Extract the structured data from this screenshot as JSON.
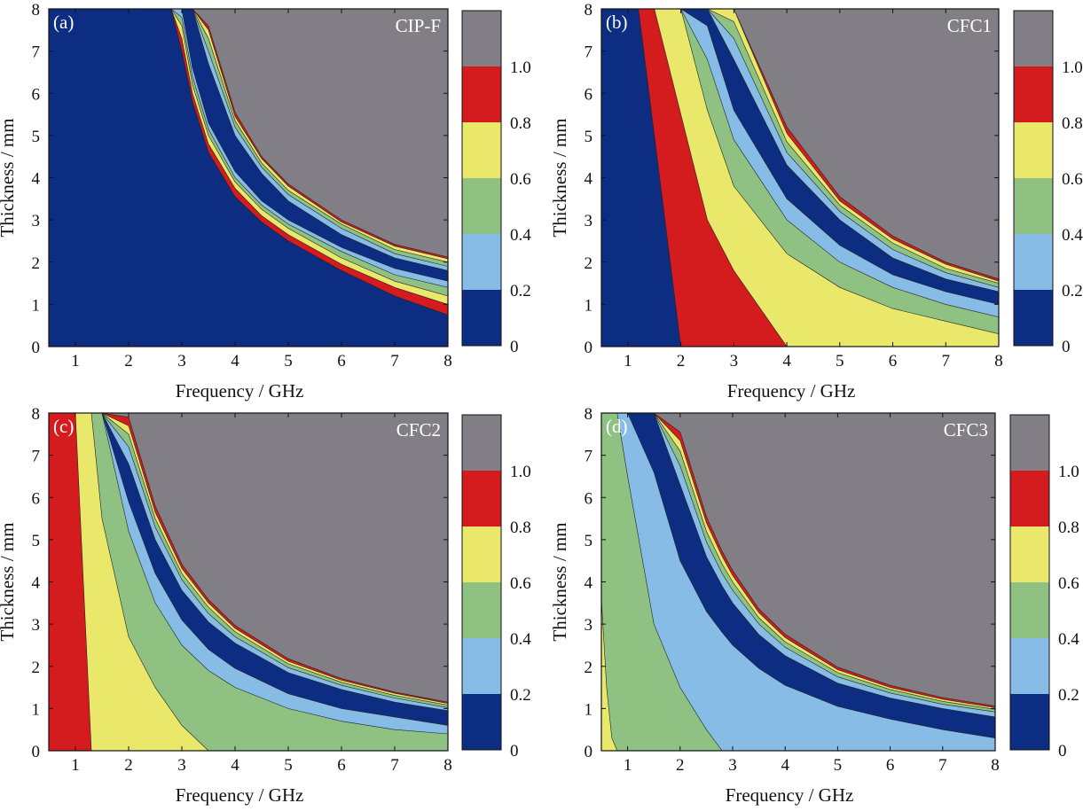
{
  "colors": {
    "band_0_0.2": "#0d2d82",
    "band_0.2_0.4": "#86bce6",
    "band_0.4_0.6": "#8fc183",
    "band_0.6_0.8": "#e9e86b",
    "band_0.8_1.0": "#d41b1d",
    "band_above_1.0": "#817f85"
  },
  "chart_data": [
    {
      "type": "heatmap",
      "panel_label": "(a)",
      "sample": "CIP-F",
      "xlabel": "Frequency / GHz",
      "ylabel": "Thickness / mm",
      "xlim": [
        0.5,
        8
      ],
      "ylim": [
        0,
        8
      ],
      "xticks": [
        "1",
        "2",
        "3",
        "4",
        "5",
        "6",
        "7",
        "8"
      ],
      "yticks": [
        "0",
        "1",
        "2",
        "3",
        "4",
        "5",
        "6",
        "7",
        "8"
      ],
      "colorbar_ticks": [
        "0",
        "0.2",
        "0.4",
        "0.6",
        "0.8",
        "1.0"
      ],
      "contour_levels": [
        0.2,
        0.4,
        0.6,
        0.8,
        1.0
      ],
      "band_edges_thickness_mm": {
        "frequency_GHz": [
          2.8,
          3.0,
          3.2,
          3.5,
          4.0,
          4.5,
          5.0,
          6.0,
          7.0,
          8.0
        ],
        "lower_1.0": [
          8.0,
          7.0,
          5.8,
          4.6,
          3.55,
          2.95,
          2.5,
          1.8,
          1.2,
          0.75
        ],
        "lower_0.8": [
          8.0,
          7.3,
          6.0,
          4.8,
          3.75,
          3.1,
          2.65,
          1.95,
          1.4,
          1.0
        ],
        "lower_0.6": [
          8.0,
          7.6,
          6.2,
          5.0,
          3.9,
          3.25,
          2.8,
          2.1,
          1.55,
          1.2
        ],
        "lower_0.4": [
          8.0,
          7.8,
          6.4,
          5.15,
          4.0,
          3.35,
          2.9,
          2.25,
          1.7,
          1.4
        ],
        "lower_0.2": [
          8.0,
          8.0,
          6.6,
          5.3,
          4.15,
          3.45,
          3.0,
          2.35,
          1.85,
          1.55
        ],
        "upper_0.2": [
          8.0,
          8.0,
          8.0,
          6.7,
          5.0,
          4.1,
          3.45,
          2.65,
          2.1,
          1.8
        ],
        "upper_0.4": [
          8.0,
          8.0,
          8.0,
          7.0,
          5.2,
          4.25,
          3.6,
          2.8,
          2.2,
          1.9
        ],
        "upper_0.6": [
          8.0,
          8.0,
          8.0,
          7.3,
          5.35,
          4.35,
          3.7,
          2.9,
          2.3,
          2.0
        ],
        "upper_0.8": [
          8.0,
          8.0,
          8.0,
          7.5,
          5.45,
          4.45,
          3.8,
          2.95,
          2.38,
          2.08
        ],
        "upper_1.0": [
          8.0,
          8.0,
          8.0,
          7.6,
          5.55,
          4.5,
          3.85,
          3.0,
          2.42,
          2.12
        ]
      }
    },
    {
      "type": "heatmap",
      "panel_label": "(b)",
      "sample": "CFC1",
      "xlabel": "Frequency / GHz",
      "ylabel": "Thickness / mm",
      "xlim": [
        0.5,
        8
      ],
      "ylim": [
        0,
        8
      ],
      "xticks": [
        "1",
        "2",
        "3",
        "4",
        "5",
        "6",
        "7",
        "8"
      ],
      "yticks": [
        "0",
        "1",
        "2",
        "3",
        "4",
        "5",
        "6",
        "7",
        "8"
      ],
      "colorbar_ticks": [
        "0",
        "0.2",
        "0.4",
        "0.6",
        "0.8",
        "1.0"
      ],
      "contour_levels": [
        0.2,
        0.4,
        0.6,
        0.8,
        1.0
      ],
      "band_edges_thickness_mm": {
        "frequency_GHz": [
          1.0,
          1.2,
          1.5,
          2.0,
          2.5,
          3.0,
          4.0,
          5.0,
          6.0,
          7.0,
          8.0
        ],
        "lower_1.0": [
          8.0,
          8.0,
          5.0,
          0.0,
          0.0,
          0.0,
          0.0,
          0.0,
          0.0,
          0.0,
          0.0
        ],
        "lower_0.8": [
          8.0,
          8.0,
          8.0,
          5.5,
          3.0,
          1.8,
          0.0,
          0.0,
          0.0,
          0.0,
          0.0
        ],
        "lower_0.6": [
          8.0,
          8.0,
          8.0,
          8.0,
          5.6,
          3.8,
          2.2,
          1.4,
          0.9,
          0.6,
          0.3
        ],
        "lower_0.4": [
          8.0,
          8.0,
          8.0,
          8.0,
          6.8,
          4.9,
          3.0,
          2.0,
          1.4,
          1.0,
          0.7
        ],
        "lower_0.2": [
          8.0,
          8.0,
          8.0,
          8.0,
          7.6,
          5.6,
          3.5,
          2.4,
          1.7,
          1.3,
          1.0
        ],
        "upper_0.2": [
          8.0,
          8.0,
          8.0,
          8.0,
          8.0,
          6.8,
          4.3,
          3.0,
          2.1,
          1.6,
          1.3
        ],
        "upper_0.4": [
          8.0,
          8.0,
          8.0,
          8.0,
          8.0,
          7.3,
          4.6,
          3.2,
          2.3,
          1.75,
          1.4
        ],
        "upper_0.6": [
          8.0,
          8.0,
          8.0,
          8.0,
          8.0,
          7.7,
          4.85,
          3.35,
          2.45,
          1.85,
          1.5
        ],
        "upper_0.8": [
          8.0,
          8.0,
          8.0,
          8.0,
          8.0,
          8.0,
          5.05,
          3.45,
          2.55,
          1.95,
          1.55
        ],
        "upper_1.0": [
          8.0,
          8.0,
          8.0,
          8.0,
          8.0,
          8.0,
          5.2,
          3.55,
          2.62,
          2.0,
          1.6
        ]
      }
    },
    {
      "type": "heatmap",
      "panel_label": "(c)",
      "sample": "CFC2",
      "xlabel": "Frequency / GHz",
      "ylabel": "Thickness / mm",
      "xlim": [
        0.5,
        8
      ],
      "ylim": [
        0,
        8
      ],
      "xticks": [
        "1",
        "2",
        "3",
        "4",
        "5",
        "6",
        "7",
        "8"
      ],
      "yticks": [
        "0",
        "1",
        "2",
        "3",
        "4",
        "5",
        "6",
        "7",
        "8"
      ],
      "colorbar_ticks": [
        "0",
        "0.2",
        "0.4",
        "0.6",
        "0.8",
        "1.0"
      ],
      "contour_levels": [
        0.2,
        0.4,
        0.6,
        0.8,
        1.0
      ],
      "band_edges_thickness_mm": {
        "frequency_GHz": [
          0.5,
          0.8,
          1.0,
          1.3,
          1.5,
          2.0,
          2.5,
          3.0,
          3.5,
          4.0,
          5.0,
          6.0,
          7.0,
          8.0
        ],
        "lower_0.8": [
          8.0,
          8.0,
          8.0,
          0.0,
          0.0,
          0.0,
          0.0,
          0.0,
          0.0,
          0.0,
          0.0,
          0.0,
          0.0,
          0.0
        ],
        "lower_0.6": [
          8.0,
          8.0,
          8.0,
          8.0,
          5.5,
          2.7,
          1.5,
          0.6,
          0.0,
          0.0,
          0.0,
          0.0,
          0.0,
          0.0
        ],
        "lower_0.4": [
          8.0,
          8.0,
          8.0,
          8.0,
          8.0,
          5.2,
          3.5,
          2.5,
          1.9,
          1.5,
          1.0,
          0.7,
          0.5,
          0.4
        ],
        "lower_0.2": [
          8.0,
          8.0,
          8.0,
          8.0,
          8.0,
          5.9,
          4.2,
          3.1,
          2.4,
          1.95,
          1.35,
          1.0,
          0.8,
          0.6
        ],
        "upper_0.2": [
          8.0,
          8.0,
          8.0,
          8.0,
          8.0,
          6.8,
          5.0,
          3.8,
          3.05,
          2.55,
          1.85,
          1.45,
          1.15,
          0.95
        ],
        "upper_0.4": [
          8.0,
          8.0,
          8.0,
          8.0,
          8.0,
          7.2,
          5.3,
          4.05,
          3.25,
          2.7,
          1.97,
          1.55,
          1.25,
          1.02
        ],
        "upper_0.6": [
          8.0,
          8.0,
          8.0,
          8.0,
          8.0,
          7.5,
          5.5,
          4.2,
          3.4,
          2.82,
          2.06,
          1.62,
          1.31,
          1.08
        ],
        "upper_0.8": [
          8.0,
          8.0,
          8.0,
          8.0,
          8.0,
          7.7,
          5.65,
          4.32,
          3.5,
          2.9,
          2.12,
          1.67,
          1.36,
          1.12
        ],
        "upper_1.0": [
          8.0,
          8.0,
          8.0,
          8.0,
          8.0,
          7.9,
          5.8,
          4.42,
          3.58,
          2.97,
          2.18,
          1.71,
          1.39,
          1.15
        ]
      }
    },
    {
      "type": "heatmap",
      "panel_label": "(d)",
      "sample": "CFC3",
      "xlabel": "Frequency / GHz",
      "ylabel": "Thickness / mm",
      "xlim": [
        0.5,
        8
      ],
      "ylim": [
        0,
        8
      ],
      "xticks": [
        "1",
        "2",
        "3",
        "4",
        "5",
        "6",
        "7",
        "8"
      ],
      "yticks": [
        "0",
        "1",
        "2",
        "3",
        "4",
        "5",
        "6",
        "7",
        "8"
      ],
      "colorbar_ticks": [
        "0",
        "0.2",
        "0.4",
        "0.6",
        "0.8",
        "1.0"
      ],
      "contour_levels": [
        0.2,
        0.4,
        0.6,
        0.8,
        1.0
      ],
      "band_edges_thickness_mm": {
        "frequency_GHz": [
          0.5,
          0.6,
          0.7,
          0.8,
          1.0,
          1.5,
          2.0,
          2.5,
          2.8,
          3.0,
          3.5,
          4.0,
          5.0,
          6.0,
          7.0,
          8.0
        ],
        "lower_0.6": [
          3.6,
          1.5,
          0.3,
          0.0,
          0.0,
          0.0,
          0.0,
          0.0,
          0.0,
          0.0,
          0.0,
          0.0,
          0.0,
          0.0,
          0.0,
          0.0
        ],
        "lower_0.4": [
          8.0,
          8.0,
          8.0,
          8.0,
          6.5,
          3.0,
          1.5,
          0.5,
          0.0,
          0.0,
          0.0,
          0.0,
          0.0,
          0.0,
          0.0,
          0.0
        ],
        "lower_0.2": [
          8.0,
          8.0,
          8.0,
          8.0,
          8.0,
          6.6,
          4.5,
          3.3,
          2.8,
          2.5,
          1.95,
          1.55,
          1.05,
          0.75,
          0.5,
          0.3
        ],
        "upper_0.2": [
          8.0,
          8.0,
          8.0,
          8.0,
          8.0,
          8.0,
          6.3,
          4.6,
          3.9,
          3.5,
          2.75,
          2.25,
          1.6,
          1.25,
          1.0,
          0.8
        ],
        "upper_0.4": [
          8.0,
          8.0,
          8.0,
          8.0,
          8.0,
          8.0,
          6.75,
          4.95,
          4.2,
          3.8,
          3.0,
          2.45,
          1.75,
          1.37,
          1.1,
          0.92
        ],
        "upper_0.6": [
          8.0,
          8.0,
          8.0,
          8.0,
          8.0,
          8.0,
          7.1,
          5.2,
          4.42,
          4.0,
          3.15,
          2.58,
          1.85,
          1.45,
          1.17,
          0.98
        ],
        "upper_0.8": [
          8.0,
          8.0,
          8.0,
          8.0,
          8.0,
          8.0,
          7.35,
          5.4,
          4.6,
          4.15,
          3.27,
          2.68,
          1.92,
          1.5,
          1.22,
          1.02
        ],
        "upper_1.0": [
          8.0,
          8.0,
          8.0,
          8.0,
          8.0,
          8.0,
          7.55,
          5.55,
          4.72,
          4.27,
          3.36,
          2.76,
          1.98,
          1.55,
          1.26,
          1.06
        ]
      }
    }
  ]
}
